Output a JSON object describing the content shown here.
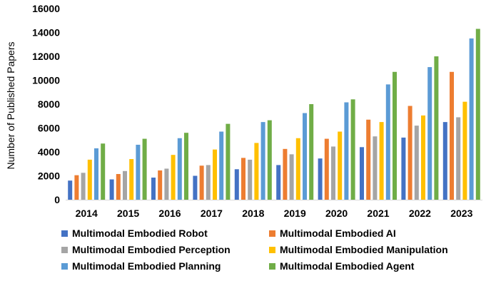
{
  "chart_data": {
    "type": "bar",
    "title": "",
    "xlabel": "",
    "ylabel": "Number of Published Papers",
    "ylim": [
      0,
      16000
    ],
    "yticks": [
      0,
      2000,
      4000,
      6000,
      8000,
      10000,
      12000,
      14000,
      16000
    ],
    "grid": false,
    "legend_position": "bottom",
    "categories": [
      "2014",
      "2015",
      "2016",
      "2017",
      "2018",
      "2019",
      "2020",
      "2021",
      "2022",
      "2023"
    ],
    "series": [
      {
        "name": "Multimodal Embodied Robot",
        "color": "#4472C4",
        "values": [
          1600,
          1700,
          1850,
          2000,
          2550,
          2900,
          3450,
          4400,
          5200,
          6500
        ]
      },
      {
        "name": "Multimodal Embodied AI",
        "color": "#ED7D31",
        "values": [
          2050,
          2150,
          2450,
          2850,
          3500,
          4250,
          5100,
          6700,
          7850,
          10700
        ]
      },
      {
        "name": "Multimodal Embodied Perception",
        "color": "#A5A5A5",
        "values": [
          2250,
          2400,
          2600,
          2900,
          3350,
          3800,
          4450,
          5300,
          6200,
          6900
        ]
      },
      {
        "name": "Multimodal Embodied Manipulation",
        "color": "#FFC000",
        "values": [
          3350,
          3400,
          3750,
          4200,
          4750,
          5150,
          5700,
          6500,
          7050,
          8200
        ]
      },
      {
        "name": "Multimodal Embodied Planning",
        "color": "#5B9BD5",
        "values": [
          4300,
          4600,
          5150,
          5700,
          6500,
          7250,
          8150,
          9650,
          11100,
          13500
        ]
      },
      {
        "name": "Multimodal Embodied Agent",
        "color": "#70AD47",
        "values": [
          4700,
          5100,
          5600,
          6350,
          6650,
          8000,
          8400,
          10700,
          12000,
          14300
        ]
      }
    ]
  }
}
